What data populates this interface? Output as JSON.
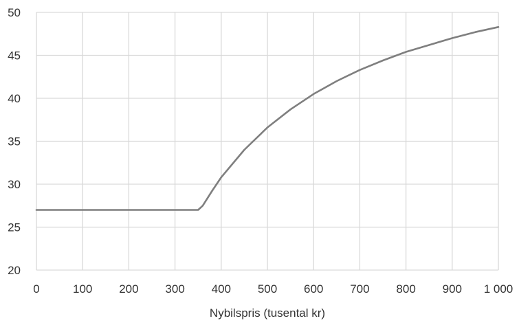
{
  "chart_data": {
    "type": "line",
    "title": "",
    "xlabel": "Nybilspris (tusental kr)",
    "ylabel": "",
    "xlim": [
      0,
      1000
    ],
    "ylim": [
      20,
      50
    ],
    "x_ticks": [
      0,
      100,
      200,
      300,
      400,
      500,
      600,
      700,
      800,
      900,
      1000
    ],
    "x_tick_labels": [
      "0",
      "100",
      "200",
      "300",
      "400",
      "500",
      "600",
      "700",
      "800",
      "900",
      "1 000"
    ],
    "y_ticks": [
      20,
      25,
      30,
      35,
      40,
      45,
      50
    ],
    "y_tick_labels": [
      "20",
      "25",
      "30",
      "35",
      "40",
      "45",
      "50"
    ],
    "grid": true,
    "legend": "none",
    "series": [
      {
        "color": "#7f7f7f",
        "x": [
          0,
          100,
          200,
          300,
          350,
          360,
          380,
          400,
          450,
          500,
          550,
          600,
          650,
          700,
          750,
          800,
          850,
          900,
          950,
          1000
        ],
        "y": [
          27,
          27,
          27,
          27,
          27,
          27.5,
          29.2,
          30.8,
          34.0,
          36.6,
          38.7,
          40.5,
          42.0,
          43.3,
          44.4,
          45.4,
          46.2,
          47.0,
          47.7,
          48.3
        ]
      }
    ]
  }
}
